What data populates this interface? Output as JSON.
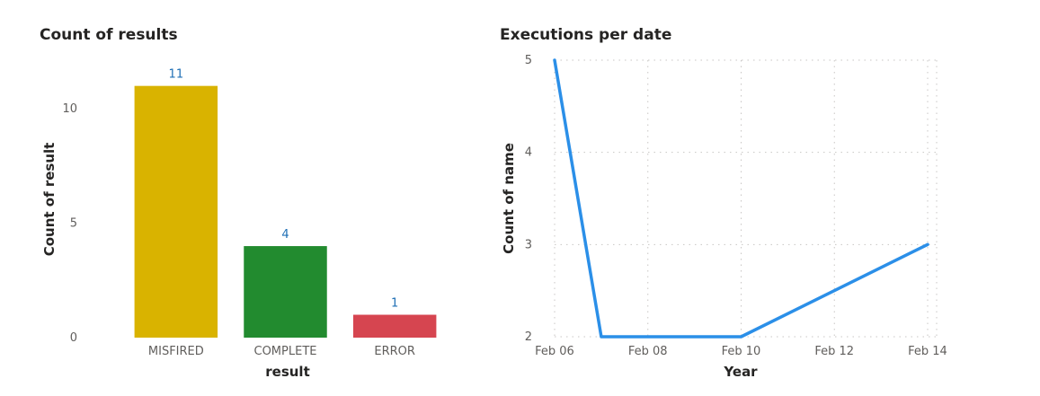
{
  "chart_data": [
    {
      "type": "bar",
      "title": "Count of results",
      "xlabel": "result",
      "ylabel": "Count of result",
      "categories": [
        "MISFIRED",
        "COMPLETE",
        "ERROR"
      ],
      "values": [
        11,
        4,
        1
      ],
      "data_labels": [
        "11",
        "4",
        "1"
      ],
      "colors": [
        "#d9b300",
        "#228b2f",
        "#d64550"
      ],
      "ylim": [
        0,
        12.4
      ],
      "yticks": [
        0,
        5,
        10
      ],
      "grid": false,
      "legend": "none"
    },
    {
      "type": "line",
      "title": "Executions per date",
      "xlabel": "Year",
      "ylabel": "Count of name",
      "x": [
        "2024-02-06",
        "2024-02-07",
        "2024-02-10",
        "2024-02-14"
      ],
      "y": [
        5,
        2,
        2,
        3
      ],
      "xticks": [
        "2024-02-06",
        "2024-02-08",
        "2024-02-10",
        "2024-02-12",
        "2024-02-14"
      ],
      "xtick_labels": [
        "Feb 06",
        "Feb 08",
        "Feb 10",
        "Feb 12",
        "Feb 14"
      ],
      "xlim": [
        "2024-02-06",
        "2024-02-14"
      ],
      "ylim": [
        2,
        5
      ],
      "yticks": [
        2,
        3,
        4,
        5
      ],
      "line_color": "#2b8fe8",
      "grid": true,
      "legend": "none"
    }
  ]
}
